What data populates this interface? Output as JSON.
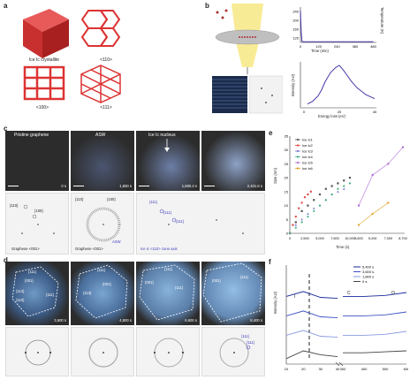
{
  "panels": {
    "a": {
      "label": "a",
      "captions": [
        "Ice Ic crystallite",
        "<110>",
        "<100>",
        "<111>"
      ]
    },
    "b": {
      "label": "b",
      "temp_chart": {
        "ylabel": "Temperature (K)",
        "xlabel": "Time (min)",
        "yticks": [
          "240",
          "200",
          "160",
          "120"
        ],
        "xticks": [
          "0",
          "120",
          "240",
          "360",
          "480"
        ]
      },
      "eels_chart": {
        "ylabel": "Intensity (AU)",
        "xlabel": "Energy loss (eV)",
        "xticks": [
          "0",
          "20",
          "40"
        ]
      }
    },
    "c": {
      "label": "c",
      "top_titles": [
        "Pristine graphene",
        "ASW",
        "Ice Ic nucleus",
        ""
      ],
      "times": [
        "0 s",
        "1,800 s",
        "1,800.4 s",
        "2,401.6 s"
      ],
      "diff_labels": {
        "p1": [
          "{110}",
          "{100}"
        ],
        "p2": [
          "{110}",
          "{100}"
        ],
        "p3": [
          "{111}",
          "{111}",
          "{111}"
        ]
      },
      "captions": [
        "Graphene <001>",
        "Graphene <001>",
        "ASW",
        "Ice Ic <110> zone axis"
      ]
    },
    "d": {
      "label": "d",
      "times": [
        "3,600 s",
        "4,800 s",
        "6,600 s",
        "8,400 s"
      ],
      "facets": [
        "{111}",
        "{001}",
        "{113}",
        "{110}",
        "{111}",
        "{001}",
        "{111}"
      ],
      "diff_labels": [
        "{111}",
        "{111}"
      ]
    },
    "e": {
      "label": "e",
      "legend": [
        "Ice Ic1",
        "Ice Ic2",
        "Ice Ic3",
        "Ice Ic4",
        "Ice Ic5",
        "Ice Ic6"
      ],
      "ylabel": "Size (nm)",
      "xlabel": "Time (s)",
      "yticks": [
        "0",
        "5",
        "10",
        "15",
        "20",
        "25",
        "30",
        "35"
      ],
      "xticks": [
        "0",
        "2,500",
        "5,000",
        "7,500",
        "10,000",
        "3,600",
        "5,200",
        "7,000",
        "8,700"
      ]
    },
    "f": {
      "label": "f",
      "legend": [
        "5,400 s",
        "3,600 s",
        "1,800 s",
        "0 s"
      ],
      "ylabel": "Intensity (AU)",
      "xticks": [
        "10",
        "20",
        "30",
        "40",
        "300",
        "400",
        "500",
        "600"
      ],
      "peak_labels": [
        "I",
        "C",
        "O"
      ],
      "colors": [
        "#1a2a9c",
        "#3d52c4",
        "#8a9be0",
        "#444444"
      ]
    }
  },
  "chart_data": [
    {
      "type": "line",
      "title": "",
      "xlabel": "Time (min)",
      "ylabel": "Temperature (K)",
      "xlim": [
        0,
        500
      ],
      "ylim": [
        100,
        260
      ],
      "series": [
        {
          "name": "",
          "x": [
            0,
            5,
            10,
            20,
            60,
            120,
            240,
            360,
            480
          ],
          "y": [
            245,
            150,
            105,
            103,
            103,
            103,
            103,
            103,
            103
          ]
        }
      ]
    },
    {
      "type": "line",
      "title": "",
      "xlabel": "Energy loss (eV)",
      "ylabel": "Intensity (AU)",
      "xlim": [
        0,
        40
      ],
      "series": [
        {
          "name": "",
          "x": [
            2,
            5,
            8,
            10,
            12,
            15,
            18,
            20,
            22,
            24,
            27,
            30,
            35,
            40
          ],
          "y": [
            0.05,
            0.12,
            0.25,
            0.4,
            0.6,
            0.82,
            0.95,
            1.0,
            0.9,
            0.78,
            0.6,
            0.45,
            0.28,
            0.18
          ]
        }
      ]
    },
    {
      "type": "scatter",
      "title": "",
      "xlabel": "Time (s)",
      "ylabel": "Size (nm)",
      "ylim": [
        0,
        35
      ],
      "series": [
        {
          "name": "Ice Ic1",
          "x": [
            0,
            1000,
            2000,
            3000,
            4000,
            5000,
            6000,
            7000,
            8000,
            9000,
            10000
          ],
          "y": [
            0,
            4,
            8,
            10,
            12,
            14,
            16,
            17,
            18,
            19,
            20
          ]
        },
        {
          "name": "Ice Ic2",
          "x": [
            0,
            500,
            1000,
            1500,
            2000,
            2500,
            3000,
            3500
          ],
          "y": [
            0,
            3,
            6,
            9,
            11,
            13,
            14,
            15
          ]
        },
        {
          "name": "Ice Ic3",
          "x": [
            0,
            1000,
            2000,
            3000,
            4000,
            5000,
            6000,
            7000,
            8000,
            9000
          ],
          "y": [
            0,
            3,
            5,
            7,
            9,
            10,
            12,
            14,
            15,
            16
          ]
        },
        {
          "name": "Ice Ic4",
          "x": [
            0,
            1000,
            2000,
            3000,
            4000,
            5000,
            6000,
            7000,
            8000,
            9000,
            10000
          ],
          "y": [
            0,
            2,
            4,
            6,
            8,
            10,
            12,
            14,
            16,
            17,
            18
          ]
        },
        {
          "name": "Ice Ic5",
          "x": [
            3600,
            5200,
            7000,
            8700
          ],
          "y": [
            10,
            21,
            25,
            31
          ]
        },
        {
          "name": "Ice Ic6",
          "x": [
            3600,
            5200,
            7000
          ],
          "y": [
            3,
            7,
            11
          ]
        }
      ]
    },
    {
      "type": "line",
      "title": "",
      "xlabel": "",
      "ylabel": "Intensity (AU)",
      "series": [
        {
          "name": "5,400 s",
          "x": [
            10,
            20,
            30,
            40,
            300,
            400,
            500,
            600
          ],
          "y": [
            3.3,
            3.55,
            3.25,
            3.2,
            3.3,
            3.3,
            3.35,
            3.5
          ]
        },
        {
          "name": "3,600 s",
          "x": [
            10,
            20,
            30,
            40,
            300,
            400,
            500,
            600
          ],
          "y": [
            2.3,
            2.55,
            2.25,
            2.2,
            2.3,
            2.3,
            2.35,
            2.5
          ]
        },
        {
          "name": "1,800 s",
          "x": [
            10,
            20,
            30,
            40,
            300,
            400,
            500,
            600
          ],
          "y": [
            1.3,
            1.55,
            1.25,
            1.2,
            1.3,
            1.3,
            1.35,
            1.5
          ]
        },
        {
          "name": "0 s",
          "x": [
            10,
            20,
            30,
            40,
            300,
            400,
            500,
            600
          ],
          "y": [
            0.1,
            0.5,
            0.3,
            0.2,
            0.4,
            0.4,
            0.45,
            0.5
          ]
        }
      ]
    }
  ]
}
